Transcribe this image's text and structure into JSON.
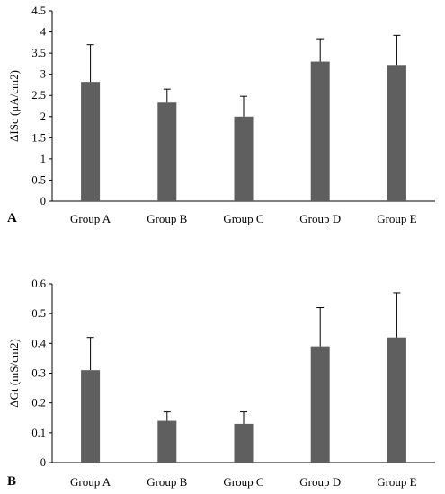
{
  "colors": {
    "bar": "#5f5f5f",
    "axis": "#000000",
    "background": "#ffffff"
  },
  "chart_data": [
    {
      "type": "bar",
      "panel_label": "A",
      "title": "",
      "xlabel": "",
      "ylabel": "ΔISc (μA/cm2)",
      "categories": [
        "Group A",
        "Group B",
        "Group C",
        "Group D",
        "Group E"
      ],
      "values": [
        2.82,
        2.33,
        2.0,
        3.3,
        3.22
      ],
      "errors": [
        0.88,
        0.32,
        0.48,
        0.54,
        0.7
      ],
      "ylim": [
        0,
        4.5
      ],
      "yticks": [
        "0",
        "0.5",
        "1",
        "1.5",
        "2",
        "2.5",
        "3",
        "3.5",
        "4",
        "4.5"
      ],
      "grid": false,
      "legend": "none"
    },
    {
      "type": "bar",
      "panel_label": "B",
      "title": "",
      "xlabel": "",
      "ylabel": "ΔGt (mS/cm2)",
      "categories": [
        "Group A",
        "Group B",
        "Group C",
        "Group D",
        "Group E"
      ],
      "values": [
        0.31,
        0.14,
        0.13,
        0.39,
        0.42
      ],
      "errors": [
        0.11,
        0.03,
        0.04,
        0.13,
        0.15
      ],
      "ylim": [
        0,
        0.6
      ],
      "yticks": [
        "0",
        "0.1",
        "0.2",
        "0.3",
        "0.4",
        "0.5",
        "0.6"
      ],
      "grid": false,
      "legend": "none"
    }
  ]
}
